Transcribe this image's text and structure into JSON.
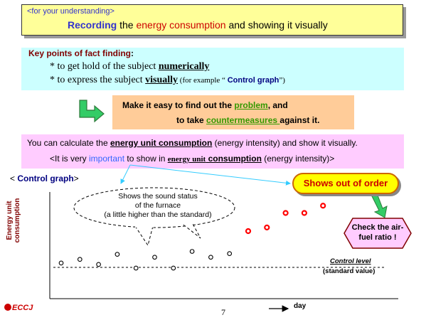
{
  "header": {
    "subtitle": "<for your understanding>",
    "title_part1": "Recording",
    "title_part2": " the ",
    "title_part3": "energy consumption",
    "title_part4": " and showing it visually"
  },
  "key_points": {
    "heading": "Key points of fact finding",
    "colon": ":",
    "item1_prefix": "*  to get hold of the subject ",
    "item1_em": "numerically",
    "item2_prefix": "*  to express the subject ",
    "item2_em": "visually",
    "item2_example_prefix": "     (for example “ ",
    "item2_example_em": "Control graph",
    "item2_example_suffix": "”)"
  },
  "make_easy": {
    "line1_prefix": "Make it easy to find out the ",
    "line1_em": "problem",
    "line1_suffix": ", and",
    "line2_prefix": "to take ",
    "line2_em": "countermeasures ",
    "line2_suffix": " against it."
  },
  "unit_note": {
    "line1_prefix": "You can calculate the ",
    "line1_em": "energy unit consumption",
    "line1_suffix": " (energy intensity) and show it visually.",
    "line2_prefix": "<It is very ",
    "line2_important": "important",
    "line2_mid": " to show in ",
    "line2_em_small": "energy unit",
    "line2_em": " consumption",
    "line2_suffix": " (energy intensity)>"
  },
  "control_graph": {
    "title_prefix": "< ",
    "title": "Control graph",
    "title_suffix": ">",
    "y_axis_label_line1": "Energy unit",
    "y_axis_label_line2": "consumption",
    "x_axis_label": "day",
    "control_level_label": "Control level",
    "standard_value_label": "(standard value)",
    "bubble_line1": "Shows the sound status",
    "bubble_line2": "of the furnace",
    "bubble_line3": "(a little higher than the standard)",
    "out_of_order_label": "Shows out of order",
    "check_line1": "Check the air-",
    "check_line2": "fuel ratio !"
  },
  "colors": {
    "normal_point": "#000000",
    "abnormal_point": "#ff0000"
  },
  "chart_data": {
    "type": "scatter",
    "title": "Control graph",
    "xlabel": "day",
    "ylabel": "Energy unit consumption",
    "control_level": 0,
    "series": [
      {
        "name": "",
        "x": [
          1,
          2,
          3,
          4,
          5,
          6,
          7,
          8,
          9,
          10
        ],
        "values": [
          0.7,
          1.2,
          0.5,
          1.9,
          0.0,
          1.5,
          0.0,
          2.3,
          1.5,
          2.0
        ]
      },
      {
        "name": "",
        "x": [
          11,
          12,
          13,
          14,
          15
        ],
        "values": [
          5.1,
          5.6,
          7.6,
          7.6,
          8.6
        ]
      }
    ]
  },
  "footer": {
    "page_number": "7",
    "logo": "ECCJ"
  }
}
